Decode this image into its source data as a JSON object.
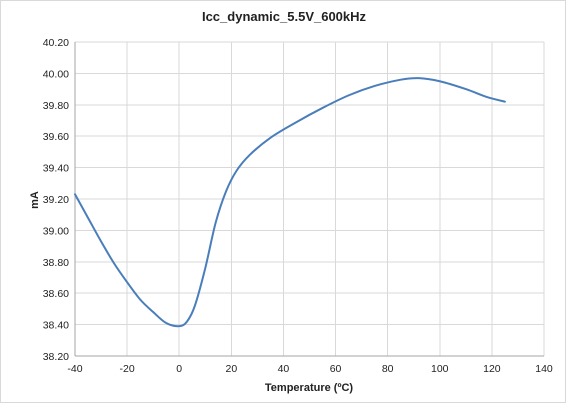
{
  "chart_data": {
    "type": "line",
    "title": "Icc_dynamic_5.5V_600kHz",
    "xlabel": "Temperature (ºC)",
    "ylabel": "mA",
    "xlim": [
      -40,
      140
    ],
    "ylim": [
      38.2,
      40.2
    ],
    "xticks": [
      -40,
      -20,
      0,
      20,
      40,
      60,
      80,
      100,
      120,
      140
    ],
    "xtick_labels": [
      "-40",
      "-20",
      "0",
      "20",
      "40",
      "60",
      "80",
      "100",
      "120",
      "140"
    ],
    "yticks": [
      38.2,
      38.4,
      38.6,
      38.8,
      39.0,
      39.2,
      39.4,
      39.6,
      39.8,
      40.0,
      40.2
    ],
    "ytick_labels": [
      "38.20",
      "38.40",
      "38.60",
      "38.80",
      "39.00",
      "39.20",
      "39.40",
      "39.60",
      "39.80",
      "40.00",
      "40.20"
    ],
    "grid": true,
    "series": [
      {
        "color": "#4a7ebb",
        "points": [
          [
            -40,
            39.23
          ],
          [
            -35,
            39.08
          ],
          [
            -30,
            38.93
          ],
          [
            -25,
            38.79
          ],
          [
            -20,
            38.67
          ],
          [
            -15,
            38.56
          ],
          [
            -10,
            38.48
          ],
          [
            -5,
            38.41
          ],
          [
            0,
            38.39
          ],
          [
            3,
            38.42
          ],
          [
            6,
            38.52
          ],
          [
            10,
            38.76
          ],
          [
            14,
            39.05
          ],
          [
            18,
            39.25
          ],
          [
            22,
            39.38
          ],
          [
            27,
            39.48
          ],
          [
            35,
            39.59
          ],
          [
            45,
            39.69
          ],
          [
            55,
            39.78
          ],
          [
            65,
            39.86
          ],
          [
            75,
            39.92
          ],
          [
            85,
            39.96
          ],
          [
            92,
            39.97
          ],
          [
            100,
            39.95
          ],
          [
            110,
            39.9
          ],
          [
            118,
            39.85
          ],
          [
            125,
            39.82
          ]
        ]
      }
    ]
  }
}
